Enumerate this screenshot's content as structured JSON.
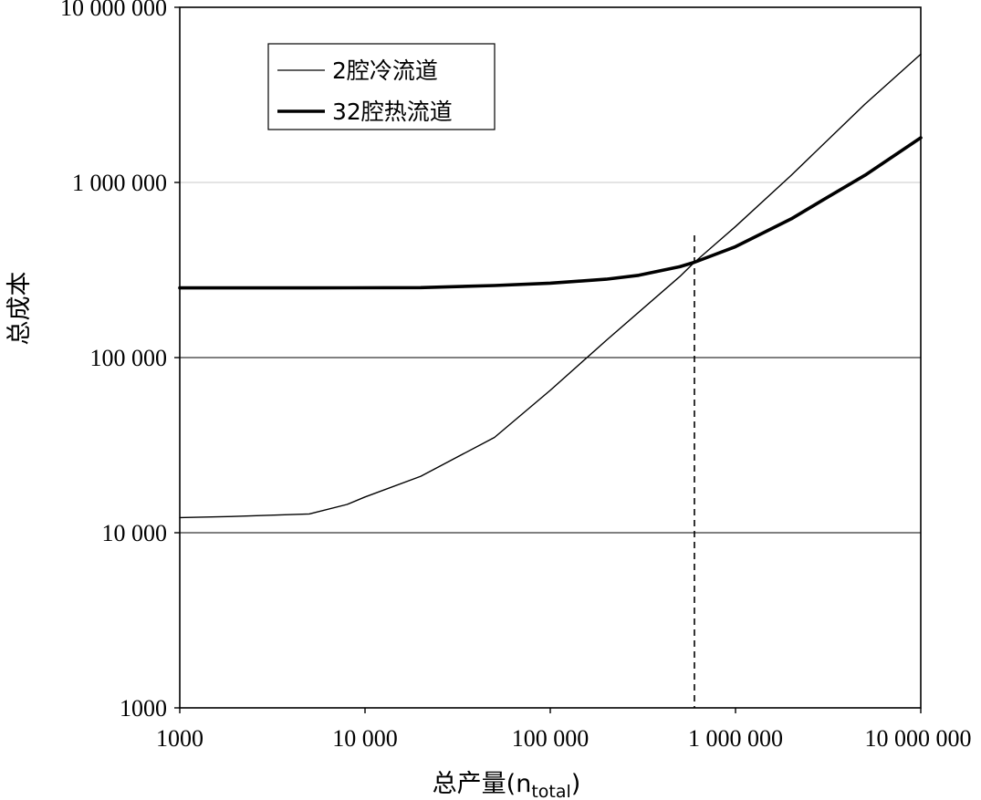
{
  "chart_data": {
    "type": "line",
    "title": "",
    "xlabel": "总产量(n",
    "xlabel_sub": "total",
    "xlabel_close": ")",
    "ylabel": "总成本",
    "xscale": "log",
    "yscale": "log",
    "xlim": [
      1000,
      10000000
    ],
    "ylim": [
      1000,
      10000000
    ],
    "x_tick_values": [
      1000,
      10000,
      100000,
      1000000,
      10000000
    ],
    "x_tick_labels": [
      "1000",
      "10 000",
      "100 000",
      "1 000 000",
      "10 000 000"
    ],
    "y_tick_values": [
      1000,
      10000,
      100000,
      1000000,
      10000000
    ],
    "y_tick_labels": [
      "1000",
      "10 000",
      "100 000",
      "1 000 000",
      "10 000 000"
    ],
    "grid": "horizontal",
    "legend_position": "top-left",
    "breakeven_x": 600000,
    "series": [
      {
        "name": "2腔冷流道",
        "style": "thin",
        "color": "#000000",
        "x": [
          1000,
          2000,
          5000,
          8000,
          10000,
          20000,
          50000,
          100000,
          200000,
          500000,
          600000,
          1000000,
          2000000,
          5000000,
          10000000
        ],
        "y": [
          12200,
          12400,
          12800,
          14500,
          16000,
          21000,
          35000,
          65000,
          125000,
          290000,
          350000,
          560000,
          1100000,
          2800000,
          5400000
        ]
      },
      {
        "name": "32腔热流道",
        "style": "thick",
        "color": "#000000",
        "x": [
          1000,
          5000,
          20000,
          50000,
          100000,
          200000,
          300000,
          500000,
          600000,
          1000000,
          2000000,
          3000000,
          5000000,
          10000000
        ],
        "y": [
          250000,
          250000,
          251000,
          258000,
          266000,
          280000,
          295000,
          330000,
          350000,
          430000,
          620000,
          800000,
          1100000,
          1800000
        ]
      }
    ]
  }
}
